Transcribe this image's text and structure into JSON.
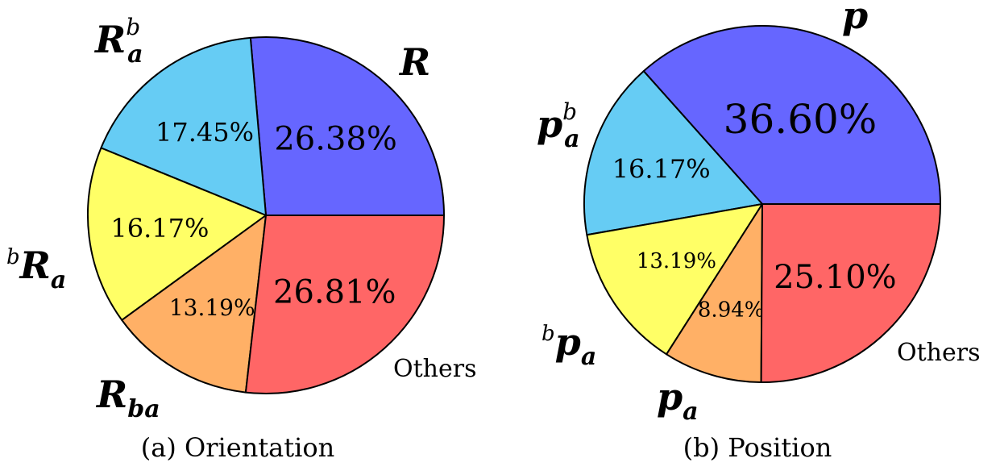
{
  "chart_data": [
    {
      "type": "pie",
      "caption": "(a) Orientation",
      "slices": [
        {
          "label": "R",
          "sup": "",
          "presup": "",
          "sub": "",
          "value": 26.38,
          "display": "26.38%",
          "color": "#6666ff"
        },
        {
          "label": "R",
          "sup": "b",
          "presup": "",
          "sub": "a",
          "value": 17.45,
          "display": "17.45%",
          "color": "#66ccf4"
        },
        {
          "label": "R",
          "sup": "",
          "presup": "b",
          "sub": "a",
          "value": 16.17,
          "display": "16.17%",
          "color": "#ffff66"
        },
        {
          "label": "R",
          "sup": "",
          "presup": "",
          "sub": "ba",
          "value": 13.19,
          "display": "13.19%",
          "color": "#ffb066"
        },
        {
          "label": "Others",
          "sup": "",
          "presup": "",
          "sub": "",
          "value": 26.81,
          "display": "26.81%",
          "color": "#ff6666"
        }
      ]
    },
    {
      "type": "pie",
      "caption": "(b) Position",
      "slices": [
        {
          "label": "p",
          "sup": "",
          "presup": "",
          "sub": "",
          "value": 36.6,
          "display": "36.60%",
          "color": "#6666ff"
        },
        {
          "label": "p",
          "sup": "b",
          "presup": "",
          "sub": "a",
          "value": 16.17,
          "display": "16.17%",
          "color": "#66ccf4"
        },
        {
          "label": "p",
          "sup": "",
          "presup": "b",
          "sub": "a",
          "value": 13.19,
          "display": "13.19%",
          "color": "#ffff66"
        },
        {
          "label": "p",
          "sup": "",
          "presup": "",
          "sub": "a",
          "value": 8.94,
          "display": "8.94%",
          "color": "#ffb066"
        },
        {
          "label": "Others",
          "sup": "",
          "presup": "",
          "sub": "",
          "value": 25.1,
          "display": "25.10%",
          "color": "#ff6666"
        }
      ]
    }
  ]
}
